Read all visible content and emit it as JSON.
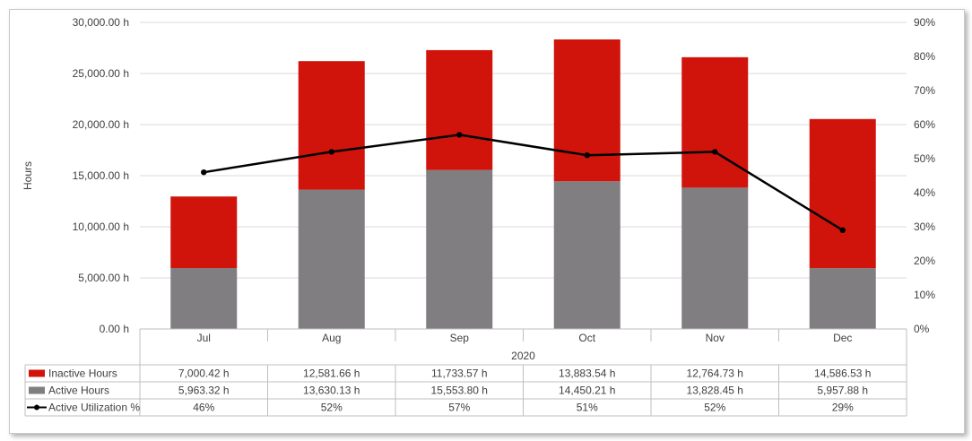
{
  "chart_data": {
    "type": "bar",
    "stacked": true,
    "group_label": "2020",
    "categories": [
      "Jul",
      "Aug",
      "Sep",
      "Oct",
      "Nov",
      "Dec"
    ],
    "ylabel": "Hours",
    "ylim": [
      0,
      30000
    ],
    "y_ticks": [
      "0.00 h",
      "5,000.00 h",
      "10,000.00 h",
      "15,000.00 h",
      "20,000.00 h",
      "25,000.00 h",
      "30,000.00 h"
    ],
    "y2lim": [
      0,
      90
    ],
    "y2_ticks": [
      "0%",
      "10%",
      "20%",
      "30%",
      "40%",
      "50%",
      "60%",
      "70%",
      "80%",
      "90%"
    ],
    "grid": true,
    "legend_position": "data-table",
    "series": [
      {
        "name": "Inactive Hours",
        "kind": "bar",
        "axis": "left",
        "color": "#d0140b",
        "values": [
          7000.42,
          12581.66,
          11733.57,
          13883.54,
          12764.73,
          14586.53
        ],
        "labels": [
          "7,000.42 h",
          "12,581.66 h",
          "11,733.57 h",
          "13,883.54 h",
          "12,764.73 h",
          "14,586.53 h"
        ]
      },
      {
        "name": "Active Hours",
        "kind": "bar",
        "axis": "left",
        "color": "#807e80",
        "values": [
          5963.32,
          13630.13,
          15553.8,
          14450.21,
          13828.45,
          5957.88
        ],
        "labels": [
          "5,963.32 h",
          "13,630.13 h",
          "15,553.80 h",
          "14,450.21 h",
          "13,828.45 h",
          "5,957.88 h"
        ]
      },
      {
        "name": "Active Utilization %",
        "kind": "line",
        "axis": "right",
        "color": "#000000",
        "values": [
          46,
          52,
          57,
          51,
          52,
          29
        ],
        "labels": [
          "46%",
          "52%",
          "57%",
          "51%",
          "52%",
          "29%"
        ]
      }
    ]
  }
}
